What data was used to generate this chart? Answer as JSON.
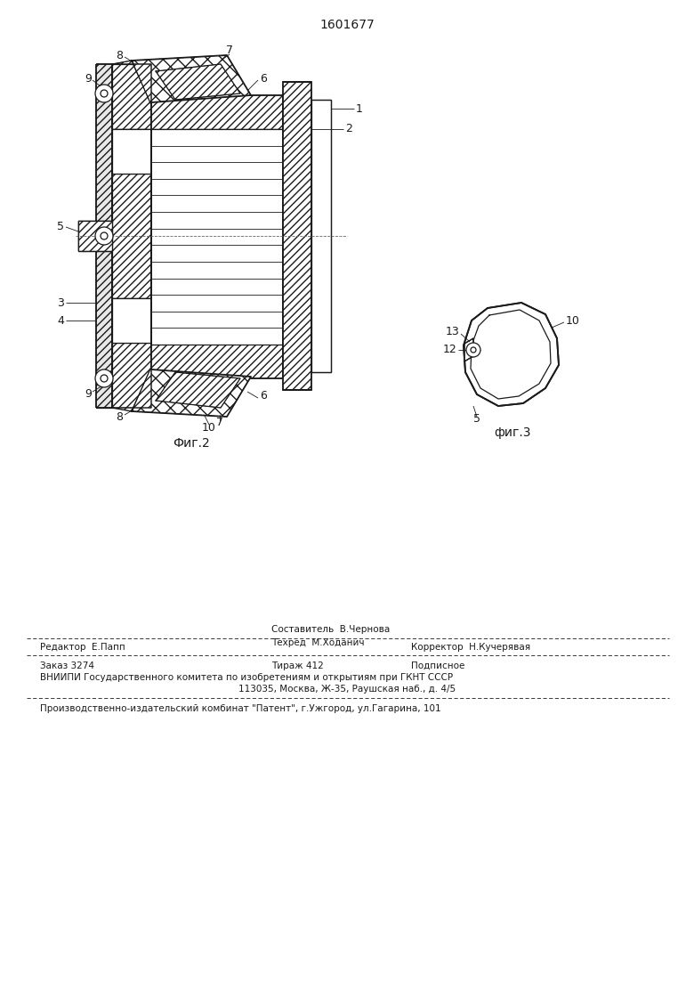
{
  "patent_number": "1601677",
  "bg_color": "#ffffff",
  "line_color": "#1a1a1a",
  "fig2_caption": "Фиг.2",
  "fig3_caption": "фиг.3",
  "footer_line1_left": "Редактор  Е.Папп",
  "footer_line1_mid_top": "Составитель  В.Чернова",
  "footer_line1_mid_bot": "Техред  М.Ходанич",
  "footer_line1_right": "Корректор  Н.Кучерявая",
  "footer_line2_1": "Заказ 3274",
  "footer_line2_2": "Тираж 412",
  "footer_line2_3": "Подписное",
  "footer_line3": "ВНИИПИ Государственного комитета по изобретениям и открытиям при ГКНТ СССР",
  "footer_line4": "113035, Москва, Ж-35, Раушская наб., д. 4/5",
  "footer_line5": "Производственно-издательский комбинат \"Патент\", г.Ужгород, ул.Гагарина, 101"
}
